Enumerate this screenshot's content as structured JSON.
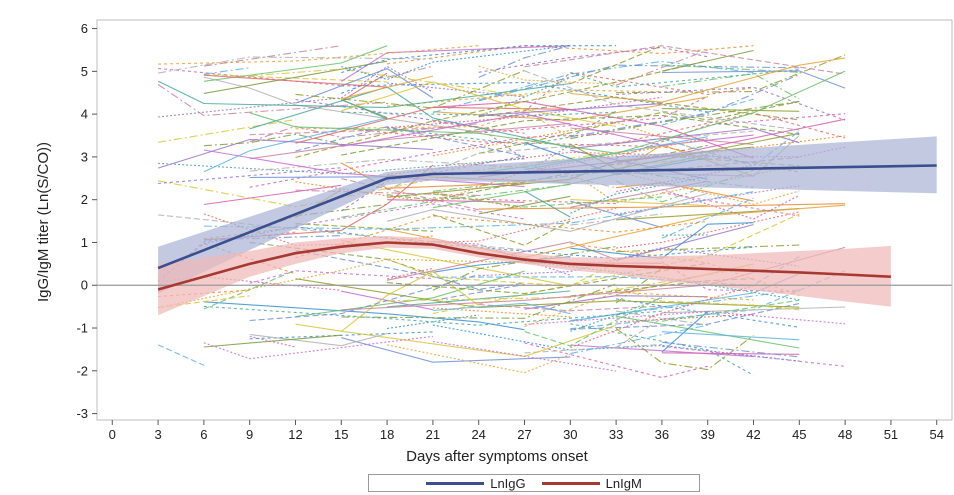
{
  "chart_data": {
    "type": "line",
    "xlabel": "Days after symptoms onset",
    "ylabel": "IgG/IgM titer (Ln(S/CO))",
    "xlim": [
      -1,
      55
    ],
    "ylim": [
      -3.15,
      6.2
    ],
    "x_ticks": [
      0,
      3,
      6,
      9,
      12,
      15,
      18,
      21,
      24,
      27,
      30,
      33,
      36,
      39,
      42,
      45,
      48,
      51,
      54
    ],
    "y_ticks": [
      -3,
      -2,
      -1,
      0,
      1,
      2,
      3,
      4,
      5,
      6
    ],
    "reference_line_y": 0,
    "grid": false,
    "legend_position": "bottom",
    "series": [
      {
        "name": "LnIgG",
        "color": "#3b4f8f",
        "band_color": "#aab4d6",
        "x": [
          3,
          18,
          21,
          54
        ],
        "y": [
          0.4,
          2.5,
          2.6,
          2.8
        ],
        "lower": [
          -0.2,
          2.35,
          2.45,
          2.15
        ],
        "upper": [
          0.9,
          2.65,
          2.75,
          3.48
        ]
      },
      {
        "name": "LnIgM",
        "color": "#a63a32",
        "band_color": "#f0b8b8",
        "x": [
          3,
          9,
          12,
          15,
          18,
          21,
          24,
          27,
          30,
          33,
          36,
          39,
          42,
          45,
          48,
          51
        ],
        "y": [
          -0.1,
          0.5,
          0.75,
          0.9,
          1.0,
          0.95,
          0.75,
          0.6,
          0.5,
          0.45,
          0.42,
          0.38,
          0.34,
          0.3,
          0.25,
          0.2
        ],
        "lower": [
          -0.7,
          0.2,
          0.5,
          0.75,
          0.88,
          0.85,
          0.65,
          0.5,
          0.35,
          0.25,
          0.1,
          0.0,
          -0.12,
          -0.25,
          -0.38,
          -0.5
        ],
        "upper": [
          0.5,
          0.8,
          1.0,
          1.1,
          1.15,
          1.1,
          0.9,
          0.75,
          0.65,
          0.65,
          0.68,
          0.7,
          0.75,
          0.8,
          0.85,
          0.92
        ]
      }
    ],
    "individual_trajectories": "approximately 250 individual patient lines in varied colours and dash styles spanning days 3 to 48, values roughly -2 to 5.6"
  },
  "legend": {
    "items": [
      {
        "label": "LnIgG",
        "color": "#3b4f8f"
      },
      {
        "label": "LnIgM",
        "color": "#a63a32"
      }
    ]
  }
}
